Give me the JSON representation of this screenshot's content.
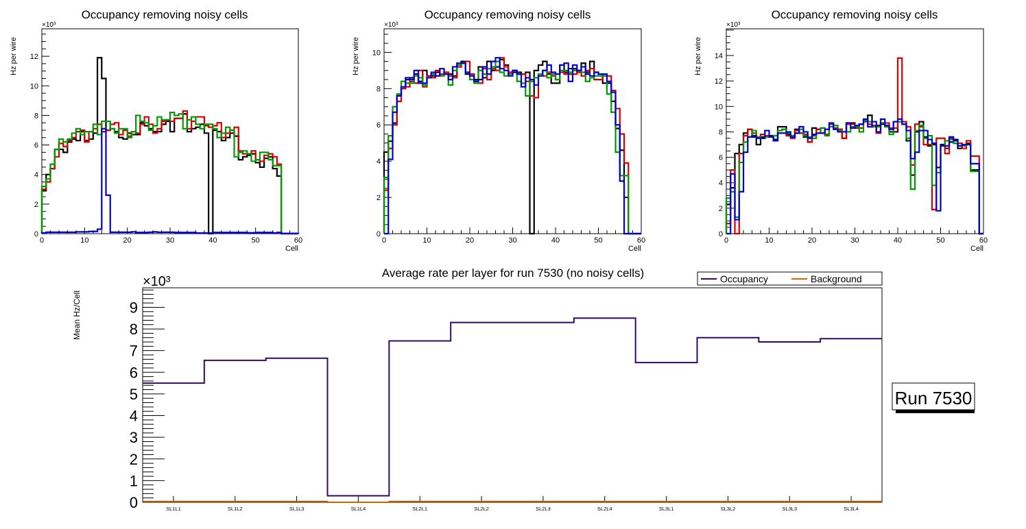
{
  "colors": {
    "black": "#000000",
    "red": "#d40000",
    "green": "#009a00",
    "blue": "#0000d0",
    "occupancy": "#2e0a66",
    "background": "#cc6600"
  },
  "chart_data": [
    {
      "type": "line",
      "step": true,
      "title": "Occupancy removing noisy cells",
      "xlabel": "Cell",
      "ylabel": "Hz per wire",
      "yexp": "×10³",
      "xlim": [
        0,
        60
      ],
      "ylim": [
        0,
        13.86
      ],
      "xticks": [
        0,
        10,
        20,
        30,
        40,
        50,
        60
      ],
      "yticks": [
        0,
        2,
        4,
        6,
        8,
        10,
        12
      ],
      "series": [
        {
          "name": "black",
          "values": [
            2.9,
            4.0,
            4.4,
            5.7,
            5.7,
            5.5,
            6.2,
            6.4,
            6.3,
            6.9,
            6.3,
            6.4,
            6.8,
            11.9,
            10.5,
            7.0,
            7.1,
            6.9,
            6.5,
            6.4,
            6.8,
            6.7,
            6.7,
            7.5,
            7.3,
            7.1,
            6.9,
            6.9,
            7.4,
            7.6,
            6.9,
            7.8,
            7.8,
            8.1,
            6.9,
            7.1,
            7.2,
            7.4,
            6.8,
            0,
            7.0,
            6.9,
            6.3,
            6.5,
            6.8,
            6.6,
            5.0,
            5.2,
            5.3,
            5.4,
            4.8,
            4.5,
            5.1,
            5.2,
            4.4,
            3.9,
            0,
            0,
            0,
            0
          ]
        },
        {
          "name": "red",
          "values": [
            3.0,
            3.5,
            4.4,
            5.2,
            6.1,
            5.9,
            6.3,
            6.5,
            6.9,
            7.0,
            6.2,
            6.9,
            7.1,
            7.4,
            6.9,
            7.0,
            7.4,
            7.5,
            6.7,
            7.0,
            6.6,
            6.9,
            6.8,
            7.4,
            7.9,
            7.4,
            6.8,
            7.1,
            7.6,
            7.7,
            7.6,
            7.8,
            7.8,
            8.3,
            7.1,
            7.6,
            7.9,
            7.9,
            7.3,
            7.2,
            7.3,
            7.5,
            6.5,
            6.8,
            7.0,
            7.2,
            5.6,
            5.4,
            5.4,
            5.6,
            5.0,
            4.9,
            5.3,
            5.4,
            5.2,
            4.7,
            0,
            0,
            0,
            0
          ]
        },
        {
          "name": "green",
          "values": [
            3.2,
            3.7,
            4.7,
            5.7,
            6.4,
            6.2,
            6.4,
            6.8,
            7.1,
            6.7,
            6.9,
            6.9,
            7.4,
            6.7,
            7.6,
            7.6,
            7.1,
            6.8,
            7.1,
            7.1,
            6.5,
            6.9,
            8.0,
            7.6,
            7.5,
            7.0,
            7.3,
            7.9,
            7.7,
            7.7,
            8.2,
            8.0,
            8.1,
            7.1,
            7.7,
            7.9,
            7.4,
            7.1,
            7.4,
            7.4,
            7.1,
            6.5,
            6.8,
            7.2,
            7.0,
            5.2,
            5.5,
            5.6,
            5.4,
            4.9,
            5.0,
            5.5,
            5.5,
            5.0,
            4.6,
            4.6,
            0,
            0,
            0,
            0
          ]
        },
        {
          "name": "blue",
          "values": [
            0.05,
            0.1,
            0.1,
            0.1,
            0.1,
            0.1,
            0.1,
            0.1,
            0.12,
            0.12,
            0.12,
            0.15,
            0.15,
            0.3,
            7.1,
            2.6,
            0.1,
            0.1,
            0.1,
            0.1,
            0.1,
            0.12,
            0.08,
            0.08,
            0.08,
            0.1,
            0.12,
            0.1,
            0.1,
            0.1,
            0.1,
            0.08,
            0.08,
            0.08,
            0.08,
            0.08,
            0.05,
            0.05,
            0.05,
            0.05,
            0.08,
            0.08,
            0.08,
            0.08,
            0.08,
            0.08,
            0.08,
            0.08,
            0.06,
            0.06,
            0.08,
            0.08,
            0.08,
            0.08,
            0.05,
            0.08,
            0.02,
            0.02,
            0.02,
            0.02
          ]
        }
      ]
    },
    {
      "type": "line",
      "step": true,
      "title": "Occupancy removing noisy cells",
      "xlabel": "Cell",
      "ylabel": "Hz per wire",
      "yexp": "×10³",
      "xlim": [
        0,
        60
      ],
      "ylim": [
        0,
        11.3
      ],
      "xticks": [
        0,
        10,
        20,
        30,
        40,
        50,
        60
      ],
      "yticks": [
        0,
        2,
        4,
        6,
        8,
        10
      ],
      "series": [
        {
          "name": "black",
          "values": [
            4.5,
            5.1,
            6.1,
            7.6,
            8.0,
            8.5,
            8.6,
            8.8,
            8.4,
            9.0,
            8.7,
            8.7,
            8.9,
            8.8,
            8.9,
            8.8,
            8.7,
            9.2,
            9.5,
            8.8,
            8.8,
            8.5,
            9.2,
            8.6,
            9.5,
            9.0,
            9.2,
            9.6,
            9.3,
            8.9,
            8.9,
            8.9,
            8.8,
            8.9,
            0,
            9.0,
            9.3,
            9.5,
            8.8,
            8.3,
            8.3,
            9.3,
            8.9,
            9.1,
            9.1,
            8.9,
            9.4,
            8.9,
            9.5,
            8.9,
            8.8,
            8.3,
            8.3,
            7.3,
            5.8,
            4.6,
            2.0,
            0,
            0,
            0
          ]
        },
        {
          "name": "red",
          "values": [
            2.4,
            4.7,
            6.0,
            7.3,
            8.0,
            8.1,
            8.4,
            8.3,
            9.0,
            8.1,
            8.7,
            8.6,
            9.0,
            8.8,
            8.9,
            8.7,
            8.6,
            9.2,
            9.4,
            9.5,
            8.8,
            8.4,
            8.3,
            9.1,
            8.5,
            9.1,
            9.0,
            9.7,
            9.2,
            8.9,
            9.0,
            8.8,
            8.8,
            8.4,
            7.6,
            7.5,
            8.8,
            8.7,
            8.9,
            8.7,
            8.5,
            8.9,
            8.8,
            8.8,
            8.8,
            8.9,
            8.7,
            9.0,
            9.1,
            8.5,
            8.5,
            8.7,
            8.7,
            7.9,
            6.9,
            5.5,
            3.9,
            0,
            0,
            0
          ]
        },
        {
          "name": "green",
          "values": [
            3.1,
            5.4,
            7.0,
            7.7,
            8.4,
            8.3,
            8.3,
            8.7,
            8.6,
            8.2,
            8.6,
            8.8,
            8.7,
            8.7,
            8.8,
            8.2,
            9.0,
            9.3,
            9.4,
            8.9,
            8.5,
            8.3,
            9.0,
            8.8,
            9.1,
            9.2,
            9.5,
            8.9,
            8.7,
            8.8,
            9.0,
            8.4,
            8.3,
            7.6,
            8.4,
            8.6,
            8.8,
            9.0,
            8.6,
            8.8,
            8.5,
            9.0,
            9.0,
            8.9,
            9.0,
            9.0,
            8.9,
            8.4,
            8.6,
            8.7,
            8.7,
            8.7,
            7.7,
            6.7,
            4.5,
            3.2,
            3.2,
            0,
            0,
            0
          ]
        },
        {
          "name": "blue",
          "values": [
            0,
            4.1,
            6.7,
            7.6,
            8.1,
            8.6,
            8.5,
            9.0,
            8.3,
            8.3,
            8.6,
            8.9,
            8.7,
            9.1,
            8.8,
            8.5,
            9.2,
            9.4,
            9.4,
            8.9,
            8.7,
            8.4,
            8.5,
            9.2,
            8.8,
            9.5,
            9.7,
            9.1,
            9.0,
            8.7,
            9.0,
            8.8,
            8.1,
            8.6,
            8.5,
            8.2,
            8.7,
            9.0,
            9.3,
            8.9,
            8.8,
            9.3,
            9.4,
            8.4,
            9.3,
            9.0,
            9.2,
            8.8,
            8.7,
            8.9,
            8.8,
            8.8,
            8.4,
            7.8,
            6.0,
            2.9,
            0,
            0,
            0,
            0
          ]
        }
      ]
    },
    {
      "type": "line",
      "step": true,
      "title": "Occupancy removing noisy cells",
      "xlabel": "Cell",
      "ylabel": "Hz per wire",
      "yexp": "×10³",
      "xlim": [
        0,
        60
      ],
      "ylim": [
        0,
        16.1
      ],
      "xticks": [
        0,
        10,
        20,
        30,
        40,
        50,
        60
      ],
      "yticks": [
        0,
        2,
        4,
        6,
        8,
        10,
        12,
        14
      ],
      "series": [
        {
          "name": "black",
          "values": [
            2.3,
            3.6,
            6.3,
            7.0,
            7.9,
            8.2,
            7.6,
            7.0,
            7.6,
            7.6,
            7.7,
            7.4,
            8.4,
            8.4,
            7.8,
            7.6,
            8.2,
            7.9,
            7.6,
            7.2,
            8.3,
            8.2,
            8.3,
            7.8,
            8.6,
            8.3,
            8.2,
            7.5,
            8.7,
            8.7,
            8.5,
            8.6,
            8.9,
            9.3,
            8.4,
            8.5,
            8.6,
            8.4,
            8.0,
            8.0,
            8.8,
            8.8,
            7.3,
            4.6,
            8.0,
            8.8,
            7.6,
            6.9,
            7.0,
            5.2,
            7.0,
            6.7,
            7.2,
            7.4,
            6.7,
            6.9,
            7.1,
            5.0,
            5.0,
            0
          ]
        },
        {
          "name": "red",
          "values": [
            0.8,
            5.0,
            0,
            6.3,
            7.7,
            8.2,
            7.9,
            7.6,
            7.8,
            7.7,
            7.6,
            7.3,
            8.1,
            8.2,
            7.7,
            7.5,
            8.1,
            7.9,
            7.8,
            7.2,
            7.7,
            8.2,
            7.9,
            7.8,
            8.6,
            8.3,
            8.2,
            7.5,
            8.6,
            8.6,
            8.3,
            8.3,
            8.8,
            8.6,
            8.5,
            7.9,
            8.7,
            8.7,
            8.3,
            8.3,
            13.8,
            8.8,
            8.4,
            5.4,
            8.6,
            8.4,
            7.0,
            7.0,
            1.9,
            7.5,
            7.5,
            6.3,
            7.5,
            7.1,
            7.1,
            6.7,
            7.3,
            6.1,
            6.1,
            0
          ]
        },
        {
          "name": "green",
          "values": [
            2.8,
            3.3,
            1.3,
            5.6,
            7.2,
            7.6,
            8.1,
            7.6,
            7.5,
            7.6,
            7.6,
            7.7,
            8.1,
            8.2,
            7.9,
            7.7,
            7.9,
            8.2,
            7.7,
            7.6,
            7.5,
            7.9,
            8.3,
            7.7,
            8.4,
            8.5,
            8.1,
            8.0,
            8.0,
            8.4,
            8.4,
            8.0,
            8.9,
            8.8,
            8.4,
            8.4,
            8.7,
            8.4,
            7.8,
            8.8,
            8.8,
            8.6,
            7.5,
            3.5,
            8.1,
            8.5,
            7.5,
            7.7,
            3.8,
            4.8,
            6.9,
            7.3,
            7.4,
            7.1,
            6.9,
            6.9,
            7.0,
            4.9,
            4.9,
            0
          ]
        },
        {
          "name": "blue",
          "values": [
            0,
            4.7,
            1.1,
            3.3,
            6.4,
            7.6,
            7.7,
            7.5,
            7.5,
            8.1,
            7.6,
            7.3,
            7.9,
            7.9,
            8.0,
            7.6,
            7.9,
            8.4,
            8.0,
            7.5,
            7.8,
            7.9,
            7.9,
            8.2,
            8.7,
            8.2,
            8.0,
            8.0,
            8.7,
            8.3,
            8.5,
            8.6,
            9.0,
            8.4,
            8.8,
            8.0,
            9.0,
            8.5,
            8.2,
            8.8,
            9.0,
            8.6,
            8.1,
            5.9,
            6.4,
            8.1,
            8.1,
            7.4,
            7.1,
            1.8,
            6.9,
            6.9,
            7.6,
            7.3,
            6.9,
            7.0,
            7.0,
            5.5,
            5.5,
            0
          ]
        }
      ]
    },
    {
      "type": "line",
      "step": true,
      "title": "Average rate per layer for run 7530 (no noisy cells)",
      "xlabel": "",
      "ylabel": "Mean Hz/Cell",
      "yexp": "×10³",
      "categories": [
        "SL1L1",
        "SL1L2",
        "SL1L3",
        "SL1L4",
        "SL2L1",
        "SL2L2",
        "SL2L3",
        "SL2L4",
        "SL3L1",
        "SL3L2",
        "SL3L3",
        "SL3L4"
      ],
      "ylim": [
        0,
        9.9
      ],
      "yticks": [
        0,
        1,
        2,
        3,
        4,
        5,
        6,
        7,
        8,
        9
      ],
      "legend": {
        "placement": "top-right",
        "entries": [
          "Occupancy",
          "Background"
        ]
      },
      "series": [
        {
          "name": "Occupancy",
          "values": [
            5.5,
            6.55,
            6.65,
            0.3,
            7.45,
            8.3,
            8.3,
            8.5,
            6.45,
            7.6,
            7.4,
            7.55
          ]
        },
        {
          "name": "Background",
          "values": [
            0.04,
            0.04,
            0.04,
            0.0,
            0.04,
            0.04,
            0.04,
            0.04,
            0.04,
            0.04,
            0.04,
            0.04
          ]
        }
      ],
      "annotation": "Run 7530"
    }
  ]
}
